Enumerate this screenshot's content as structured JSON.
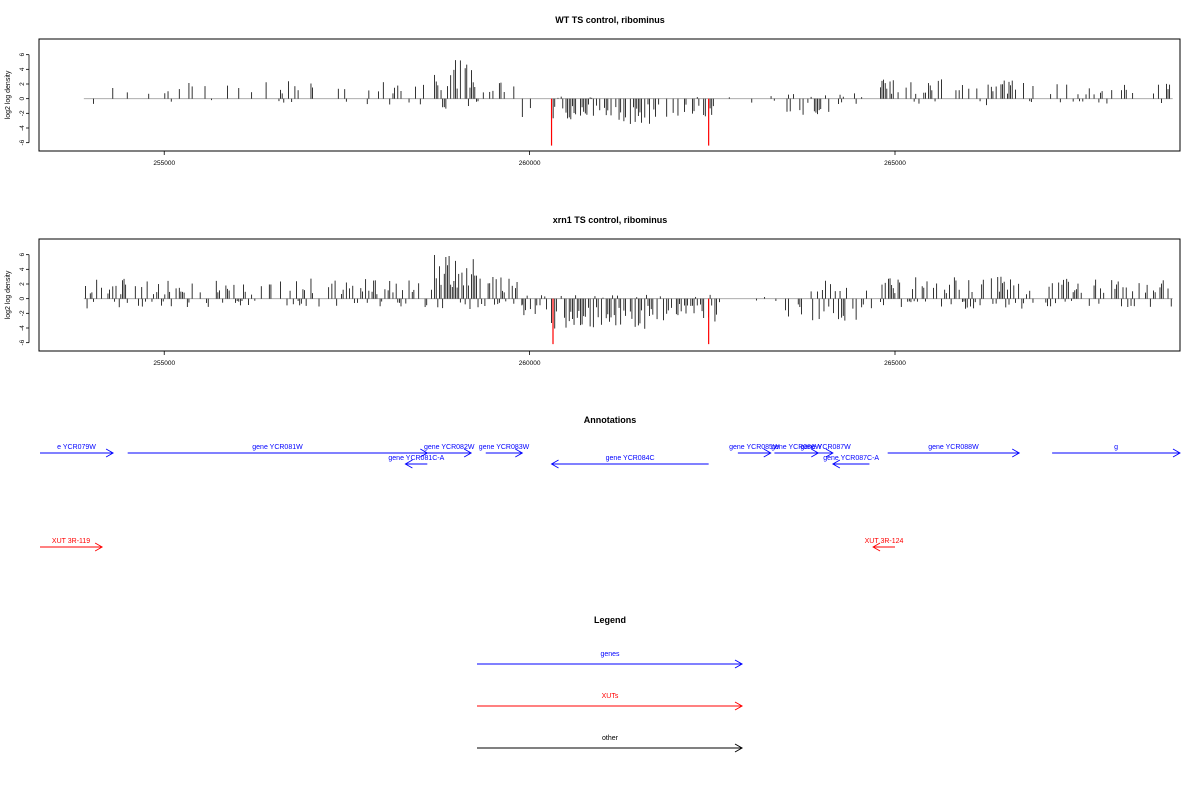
{
  "chart_data": [
    {
      "type": "bar",
      "title": "WT TS control, ribominus",
      "ylabel": "log2 log density",
      "xlabel": "",
      "xlim": [
        253300,
        268900
      ],
      "ylim": [
        -7,
        8
      ],
      "yticks": [
        -6,
        -4,
        -2,
        0,
        2,
        4,
        6
      ],
      "xticks": [
        255000,
        260000,
        265000
      ],
      "xtick_labels": [
        "255000",
        "260000",
        "265000"
      ],
      "grid": false,
      "legend": "none",
      "colors": {
        "bars": "#000000",
        "highlight": "#ff0000",
        "baseline": "#a0a0a0"
      },
      "profile": [
        {
          "start": 253900,
          "end": 254700,
          "pos": 1.6,
          "neg": 0.8,
          "density": 0.5
        },
        {
          "start": 254700,
          "end": 256700,
          "pos": 2.0,
          "neg": 0.6,
          "density": 0.7
        },
        {
          "start": 256700,
          "end": 258700,
          "pos": 2.2,
          "neg": 0.8,
          "density": 0.9
        },
        {
          "start": 258700,
          "end": 259300,
          "pos": 4.6,
          "neg": 1.2,
          "density": 2.8
        },
        {
          "start": 259300,
          "end": 259900,
          "pos": 2.0,
          "neg": 0.6,
          "density": 1.0
        },
        {
          "start": 259900,
          "end": 260300,
          "pos": 0.4,
          "neg": 2.4,
          "density": 1.2
        },
        {
          "start": 260300,
          "end": 261700,
          "pos": 0.3,
          "neg": 3.0,
          "density": 2.6
        },
        {
          "start": 261700,
          "end": 262600,
          "pos": 0.3,
          "neg": 2.2,
          "density": 1.8
        },
        {
          "start": 262600,
          "end": 263500,
          "pos": 0.5,
          "neg": 0.6,
          "density": 0.2
        },
        {
          "start": 263500,
          "end": 264500,
          "pos": 0.8,
          "neg": 2.0,
          "density": 0.9
        },
        {
          "start": 264500,
          "end": 264800,
          "pos": 0.4,
          "neg": 0.8,
          "density": 0.3
        },
        {
          "start": 264800,
          "end": 266800,
          "pos": 2.3,
          "neg": 0.8,
          "density": 1.8
        },
        {
          "start": 266800,
          "end": 268800,
          "pos": 1.8,
          "neg": 0.6,
          "density": 1.0
        }
      ],
      "highlights": [
        {
          "x": 260300,
          "value": -6.4
        },
        {
          "x": 262450,
          "value": -6.4
        }
      ]
    },
    {
      "type": "bar",
      "title": "xrn1 TS control, ribominus",
      "ylabel": "log2 log density",
      "xlabel": "",
      "xlim": [
        253300,
        268900
      ],
      "ylim": [
        -7,
        8
      ],
      "yticks": [
        -6,
        -4,
        -2,
        0,
        2,
        4,
        6
      ],
      "xticks": [
        255000,
        260000,
        265000
      ],
      "xtick_labels": [
        "255000",
        "260000",
        "265000"
      ],
      "grid": false,
      "legend": "none",
      "colors": {
        "bars": "#000000",
        "highlight": "#ff0000",
        "baseline": "#a0a0a0"
      },
      "profile": [
        {
          "start": 253900,
          "end": 254700,
          "pos": 2.4,
          "neg": 1.2,
          "density": 2.0
        },
        {
          "start": 254700,
          "end": 256700,
          "pos": 2.2,
          "neg": 1.0,
          "density": 1.8
        },
        {
          "start": 256700,
          "end": 258700,
          "pos": 2.4,
          "neg": 1.0,
          "density": 1.9
        },
        {
          "start": 258700,
          "end": 259300,
          "pos": 5.2,
          "neg": 1.4,
          "density": 4.0
        },
        {
          "start": 259300,
          "end": 259900,
          "pos": 3.0,
          "neg": 1.0,
          "density": 2.6
        },
        {
          "start": 259900,
          "end": 260300,
          "pos": 0.6,
          "neg": 2.8,
          "density": 1.8
        },
        {
          "start": 260300,
          "end": 261700,
          "pos": 0.5,
          "neg": 3.6,
          "density": 3.2
        },
        {
          "start": 261700,
          "end": 262600,
          "pos": 0.5,
          "neg": 2.8,
          "density": 2.4
        },
        {
          "start": 262600,
          "end": 263500,
          "pos": 0.4,
          "neg": 0.5,
          "density": 0.1
        },
        {
          "start": 263500,
          "end": 264500,
          "pos": 2.2,
          "neg": 2.6,
          "density": 2.0
        },
        {
          "start": 264500,
          "end": 264800,
          "pos": 1.2,
          "neg": 1.4,
          "density": 0.8
        },
        {
          "start": 264800,
          "end": 266800,
          "pos": 2.6,
          "neg": 1.2,
          "density": 2.6
        },
        {
          "start": 266800,
          "end": 268800,
          "pos": 2.4,
          "neg": 1.0,
          "density": 2.2
        }
      ],
      "highlights": [
        {
          "x": 260320,
          "value": -6.2
        },
        {
          "x": 262450,
          "value": -6.2
        }
      ]
    }
  ],
  "annotations": {
    "title": "Annotations",
    "colors": {
      "genes": "#0000ff",
      "xuts": "#ff0000"
    },
    "genes": [
      {
        "label": "e YCR079W",
        "start": 253300,
        "end": 254300,
        "strand": "+",
        "row": 0
      },
      {
        "label": "gene YCR081W",
        "start": 254500,
        "end": 258600,
        "strand": "+",
        "row": 0
      },
      {
        "label": "gene YCR081C-A",
        "start": 258300,
        "end": 258600,
        "strand": "-",
        "row": 1
      },
      {
        "label": "gene YCR082W",
        "start": 258600,
        "end": 259200,
        "strand": "+",
        "row": 0
      },
      {
        "label": "gene YCR083W",
        "start": 259400,
        "end": 259900,
        "strand": "+",
        "row": 0
      },
      {
        "label": "gene YCR084C",
        "start": 260300,
        "end": 262450,
        "strand": "-",
        "row": 1
      },
      {
        "label": "gene YCR085W",
        "start": 262850,
        "end": 263300,
        "strand": "+",
        "row": 0
      },
      {
        "label": "gene YCR086W",
        "start": 263350,
        "end": 263950,
        "strand": "+",
        "row": 0
      },
      {
        "label": "gene YCR087W",
        "start": 263950,
        "end": 264150,
        "strand": "+",
        "row": 0
      },
      {
        "label": "gene YCR087C-A",
        "start": 264150,
        "end": 264650,
        "strand": "-",
        "row": 1
      },
      {
        "label": "gene YCR088W",
        "start": 264900,
        "end": 266700,
        "strand": "+",
        "row": 0
      },
      {
        "label": "g",
        "start": 267150,
        "end": 268900,
        "strand": "+",
        "row": 0
      }
    ],
    "xuts": [
      {
        "label": "XUT 3R-119",
        "start": 253300,
        "end": 254150,
        "strand": "+"
      },
      {
        "label": "XUT 3R-124",
        "start": 264700,
        "end": 265000,
        "strand": "-"
      }
    ]
  },
  "legend": {
    "title": "Legend",
    "items": [
      {
        "label": "genes",
        "color": "#0000ff"
      },
      {
        "label": "XUTs",
        "color": "#ff0000"
      },
      {
        "label": "other",
        "color": "#000000"
      }
    ]
  }
}
